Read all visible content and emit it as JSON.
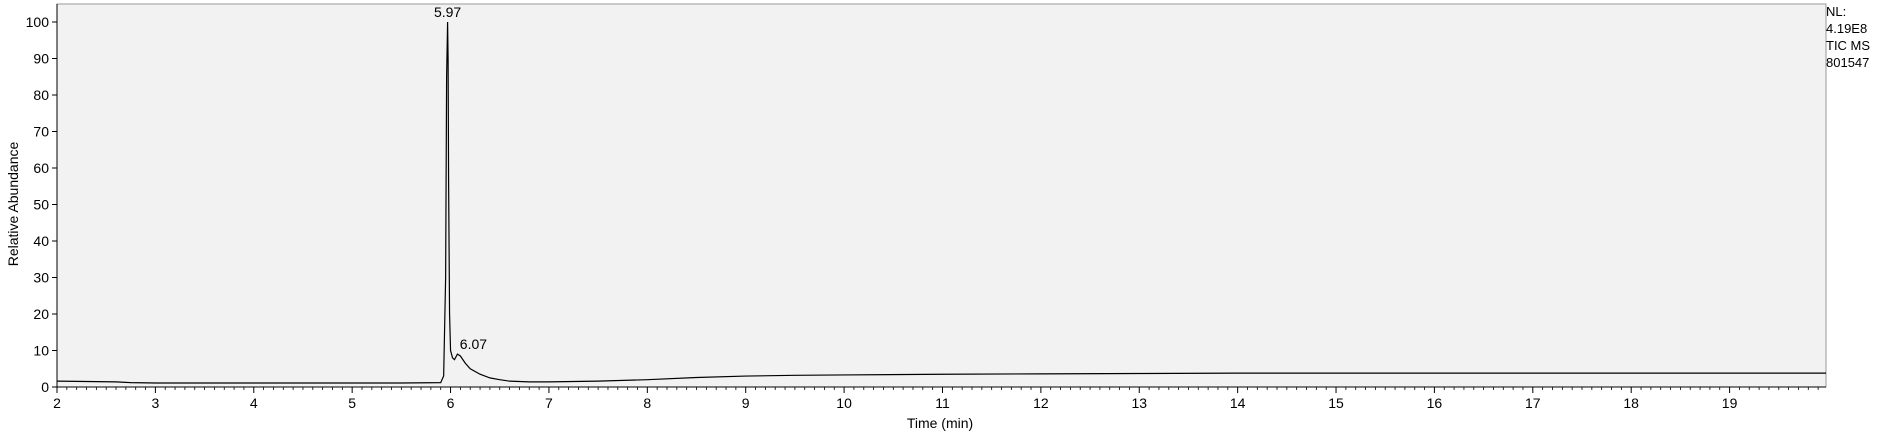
{
  "chart_data": {
    "type": "line",
    "xlabel": "Time (min)",
    "ylabel": "Relative Abundance",
    "xlim": [
      2.0,
      19.98
    ],
    "ylim": [
      0,
      100
    ],
    "xticks": [
      2,
      3,
      4,
      5,
      6,
      7,
      8,
      9,
      10,
      11,
      12,
      13,
      14,
      15,
      16,
      17,
      18,
      19
    ],
    "yticks": [
      0,
      10,
      20,
      30,
      40,
      50,
      60,
      70,
      80,
      90,
      100
    ],
    "grid": false,
    "plot_background": "#f2f2f2",
    "line_color": "#000000",
    "peak_labels": [
      {
        "x": 5.97,
        "y": 100,
        "label": "5.97"
      },
      {
        "x": 6.07,
        "y": 9,
        "label": "6.07"
      }
    ],
    "series": [
      {
        "x": [
          2.0,
          2.3,
          2.6,
          2.75,
          3.0,
          4.0,
          5.0,
          5.5,
          5.9,
          5.93,
          5.95,
          5.96,
          5.97,
          5.975,
          5.98,
          5.99,
          6.0,
          6.02,
          6.04,
          6.07,
          6.1,
          6.15,
          6.2,
          6.3,
          6.4,
          6.5,
          6.6,
          6.8,
          7.0,
          7.5,
          8.0,
          8.5,
          9.0,
          9.5,
          10.0,
          11.0,
          12.0,
          13.0,
          14.0,
          15.0,
          16.0,
          17.0,
          18.0,
          19.0,
          19.98
        ],
        "y": [
          1.6,
          1.5,
          1.4,
          1.2,
          1.1,
          1.1,
          1.1,
          1.1,
          1.2,
          3.0,
          30.0,
          85.0,
          100.0,
          90.0,
          57.0,
          20.0,
          10.0,
          8.0,
          7.5,
          9.0,
          8.5,
          6.5,
          5.0,
          3.5,
          2.5,
          2.0,
          1.6,
          1.4,
          1.4,
          1.6,
          2.0,
          2.6,
          3.0,
          3.2,
          3.3,
          3.5,
          3.6,
          3.7,
          3.8,
          3.8,
          3.8,
          3.8,
          3.8,
          3.8,
          3.8
        ]
      }
    ]
  },
  "info": {
    "line1": "NL:",
    "line2": "4.19E8",
    "line3": "TIC  MS",
    "line4": "801547"
  }
}
